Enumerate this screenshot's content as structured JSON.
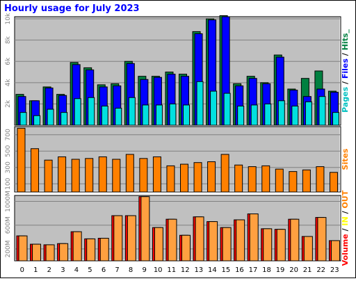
{
  "chart_data": {
    "title": "Hourly usage for July 2023",
    "hours": [
      "0",
      "1",
      "2",
      "3",
      "4",
      "5",
      "6",
      "7",
      "8",
      "9",
      "10",
      "11",
      "12",
      "13",
      "14",
      "15",
      "16",
      "17",
      "18",
      "19",
      "20",
      "21",
      "22",
      "23"
    ],
    "panels": [
      {
        "type": "bar",
        "name": "pages-files-hits",
        "ylabel_parts": [
          {
            "text": "Pages",
            "color": "#00c0c0"
          },
          {
            "text": " / ",
            "color": "#000000"
          },
          {
            "text": "Files",
            "color": "#0000ff"
          },
          {
            "text": " / ",
            "color": "#000000"
          },
          {
            "text": "Hits_",
            "color": "#008040"
          }
        ],
        "ylim": [
          0,
          10200
        ],
        "ticks": [
          {
            "value": 2000,
            "label": "2k"
          },
          {
            "value": 4000,
            "label": "4k"
          },
          {
            "value": 6000,
            "label": "6k"
          },
          {
            "value": 8000,
            "label": "8k"
          },
          {
            "value": 10000,
            "label": "10k"
          }
        ],
        "series": [
          {
            "name": "Hits",
            "color": "#008040",
            "values": [
              2900,
              2300,
              3600,
              2900,
              5900,
              5400,
              3800,
              3900,
              6000,
              4600,
              4600,
              5000,
              4800,
              8800,
              10000,
              10300,
              3900,
              4600,
              4000,
              6600,
              3400,
              4400,
              5100,
              3200
            ]
          },
          {
            "name": "Files",
            "color": "#0000ff",
            "values": [
              2700,
              2300,
              3500,
              2800,
              5700,
              5200,
              3600,
              3700,
              5800,
              4300,
              4500,
              4800,
              4600,
              8600,
              9900,
              10200,
              3700,
              4400,
              3900,
              6400,
              3300,
              2700,
              3400,
              3100
            ]
          },
          {
            "name": "Pages",
            "color": "#00e0e0",
            "values": [
              1200,
              900,
              1500,
              1200,
              2500,
              2600,
              1800,
              1600,
              2600,
              1900,
              1900,
              2000,
              1900,
              4100,
              3200,
              3000,
              1800,
              1900,
              2000,
              2300,
              1800,
              2200,
              2700,
              1200
            ]
          }
        ]
      },
      {
        "type": "bar",
        "name": "sites",
        "ylabel_parts": [
          {
            "text": "Sites",
            "color": "#ff8000"
          }
        ],
        "ylim": [
          0,
          800
        ],
        "ticks": [
          {
            "value": 100,
            "label": "100"
          },
          {
            "value": 300,
            "label": "300"
          },
          {
            "value": 500,
            "label": "500"
          },
          {
            "value": 700,
            "label": "700"
          }
        ],
        "series": [
          {
            "name": "Sites",
            "color": "#ff8000",
            "values": [
              780,
              530,
              390,
              430,
              400,
              410,
              430,
              400,
              460,
              410,
              430,
              320,
              340,
              360,
              370,
              460,
              330,
              310,
              320,
              280,
              250,
              270,
              310,
              240
            ]
          }
        ]
      },
      {
        "type": "bar",
        "name": "volume-in-out",
        "ylabel_parts": [
          {
            "text": "Volume",
            "color": "#ff0000"
          },
          {
            "text": " / ",
            "color": "#000000"
          },
          {
            "text": "IN",
            "color": "#ffff00"
          },
          {
            "text": " / ",
            "color": "#000000"
          },
          {
            "text": "OUT",
            "color": "#ff8000"
          }
        ],
        "ylim": [
          0,
          1100
        ],
        "ticks": [
          {
            "value": 200,
            "label": "200M"
          },
          {
            "value": 600,
            "label": "600M"
          },
          {
            "value": 1000,
            "label": "1000M"
          }
        ],
        "series": [
          {
            "name": "Volume",
            "color": "#ff0000",
            "values": [
              420,
              280,
              270,
              290,
              490,
              370,
              380,
              760,
              760,
              1080,
              560,
              700,
              430,
              740,
              660,
              560,
              690,
              790,
              540,
              530,
              700,
              410,
              730,
              340
            ]
          },
          {
            "name": "OUT",
            "color": "#ffa040",
            "values": [
              420,
              280,
              270,
              290,
              490,
              370,
              380,
              760,
              760,
              1080,
              560,
              700,
              430,
              740,
              660,
              560,
              690,
              790,
              540,
              530,
              700,
              410,
              730,
              340
            ]
          }
        ]
      }
    ]
  }
}
